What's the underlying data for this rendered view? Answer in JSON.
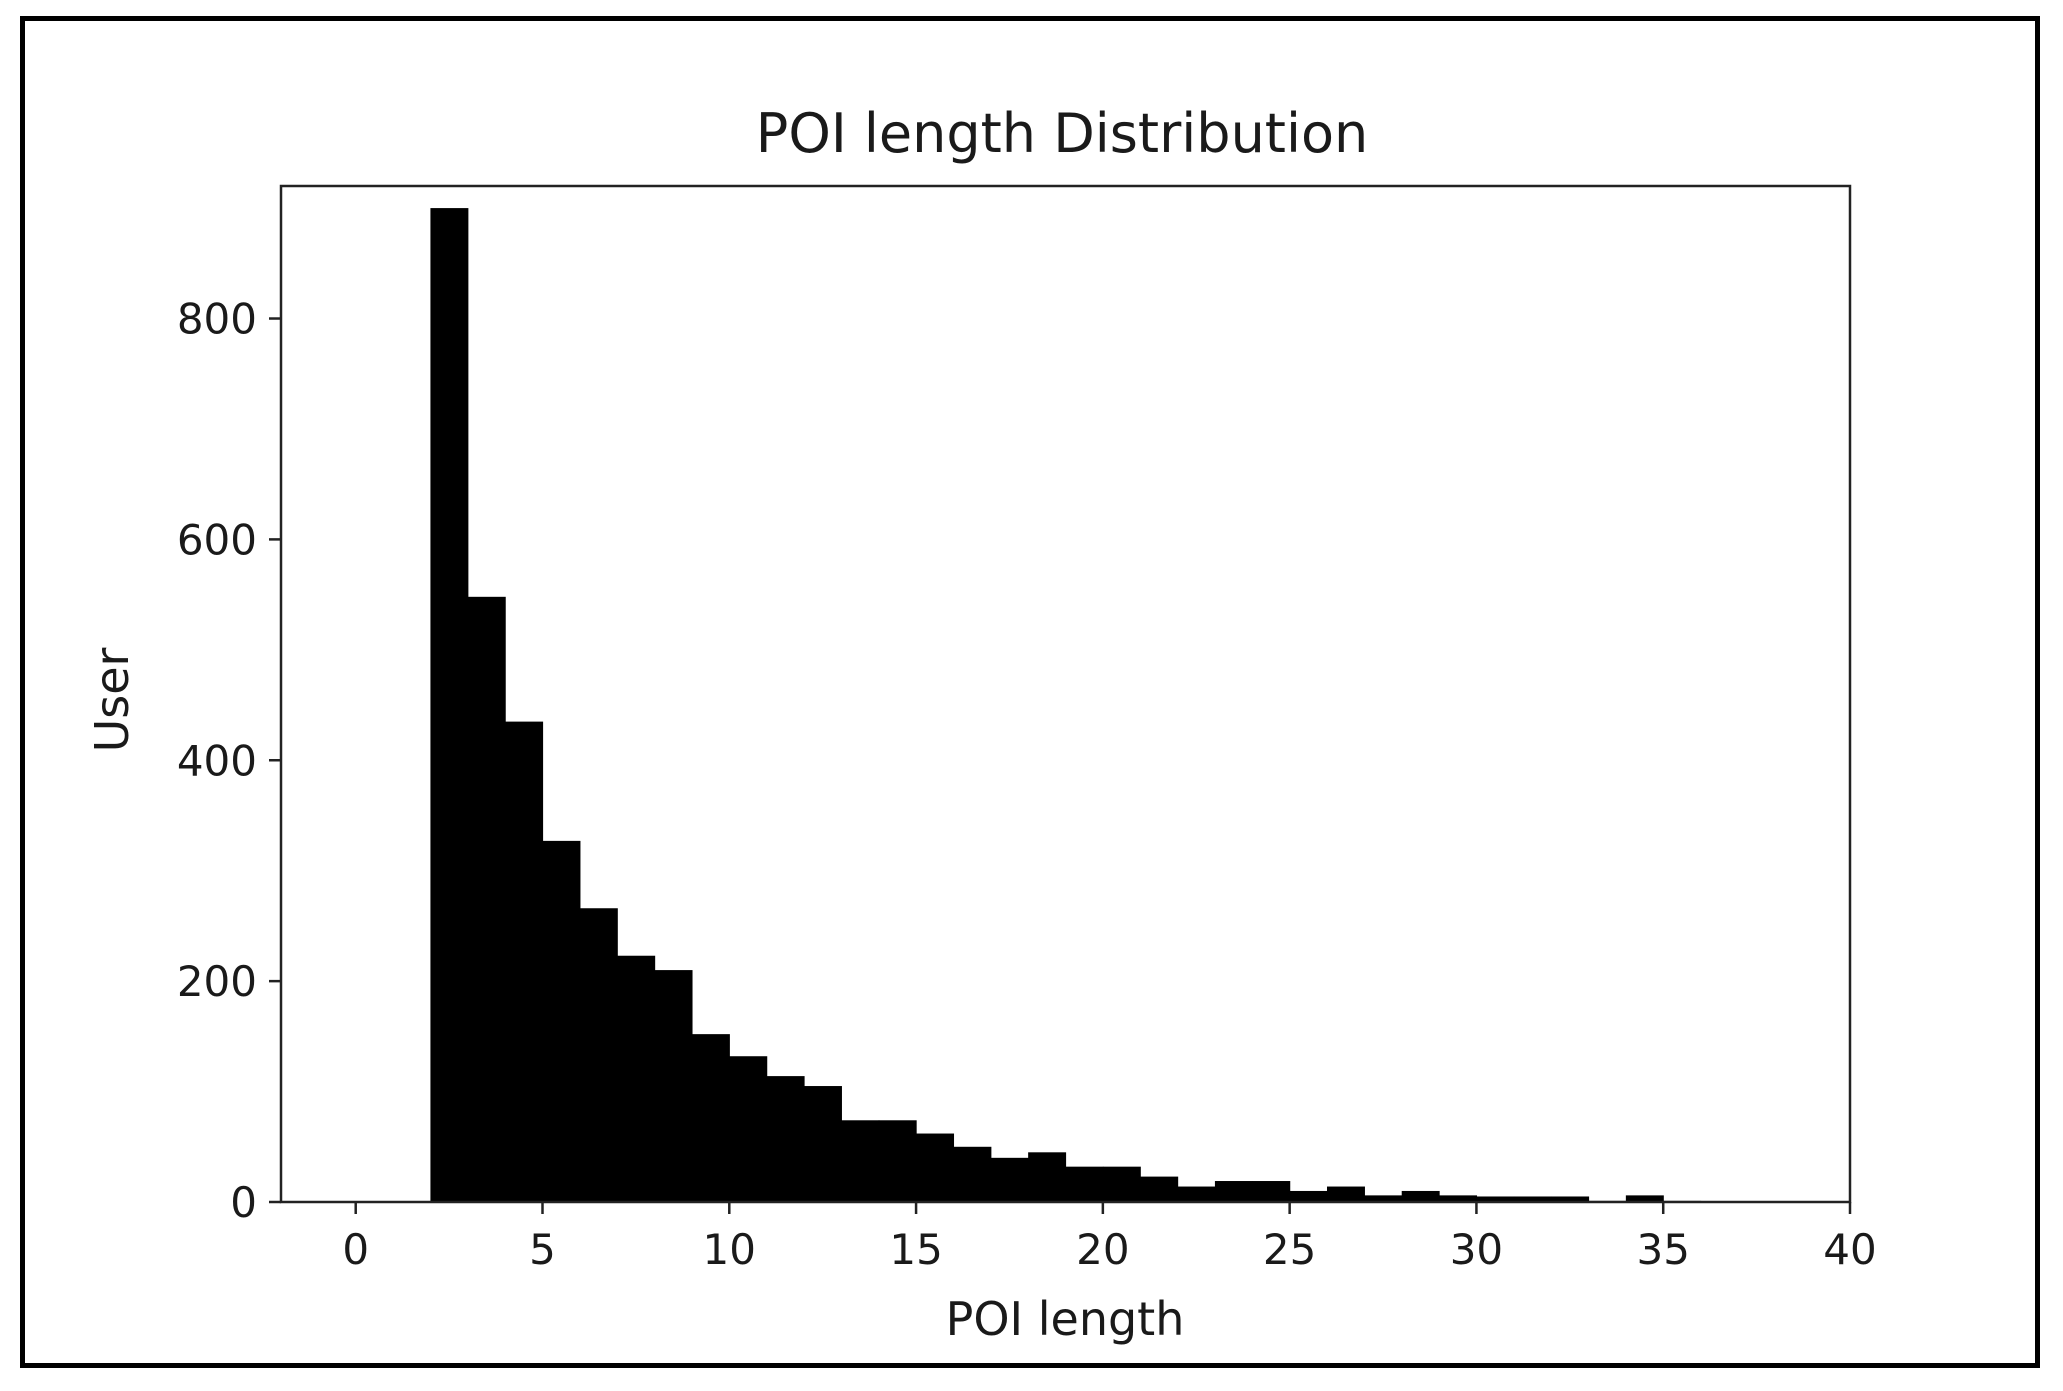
{
  "chart_data": {
    "type": "bar",
    "title": "POI length Distribution",
    "xlabel": "POI length",
    "ylabel": "User",
    "xlim": [
      -2,
      40
    ],
    "ylim": [
      0,
      920
    ],
    "xticks": [
      0,
      5,
      10,
      15,
      20,
      25,
      30,
      35,
      40
    ],
    "yticks": [
      0,
      200,
      400,
      600,
      800
    ],
    "bar_color": "#000000",
    "grid": false,
    "legend": "none",
    "bins": [
      {
        "x0": 2,
        "x1": 3,
        "value": 900
      },
      {
        "x0": 3,
        "x1": 4,
        "value": 548
      },
      {
        "x0": 4,
        "x1": 5,
        "value": 435
      },
      {
        "x0": 5,
        "x1": 6,
        "value": 327
      },
      {
        "x0": 6,
        "x1": 7,
        "value": 266
      },
      {
        "x0": 7,
        "x1": 8,
        "value": 223
      },
      {
        "x0": 8,
        "x1": 9,
        "value": 210
      },
      {
        "x0": 9,
        "x1": 10,
        "value": 152
      },
      {
        "x0": 10,
        "x1": 11,
        "value": 132
      },
      {
        "x0": 11,
        "x1": 12,
        "value": 114
      },
      {
        "x0": 12,
        "x1": 13,
        "value": 105
      },
      {
        "x0": 13,
        "x1": 14,
        "value": 74
      },
      {
        "x0": 14,
        "x1": 15,
        "value": 74
      },
      {
        "x0": 15,
        "x1": 16,
        "value": 62
      },
      {
        "x0": 16,
        "x1": 17,
        "value": 50
      },
      {
        "x0": 17,
        "x1": 18,
        "value": 40
      },
      {
        "x0": 18,
        "x1": 19,
        "value": 45
      },
      {
        "x0": 19,
        "x1": 20,
        "value": 32
      },
      {
        "x0": 20,
        "x1": 21,
        "value": 32
      },
      {
        "x0": 21,
        "x1": 22,
        "value": 23
      },
      {
        "x0": 22,
        "x1": 23,
        "value": 14
      },
      {
        "x0": 23,
        "x1": 24,
        "value": 19
      },
      {
        "x0": 24,
        "x1": 25,
        "value": 19
      },
      {
        "x0": 25,
        "x1": 26,
        "value": 10
      },
      {
        "x0": 26,
        "x1": 27,
        "value": 14
      },
      {
        "x0": 27,
        "x1": 28,
        "value": 6
      },
      {
        "x0": 28,
        "x1": 29,
        "value": 10
      },
      {
        "x0": 29,
        "x1": 30,
        "value": 6
      },
      {
        "x0": 30,
        "x1": 31,
        "value": 5
      },
      {
        "x0": 31,
        "x1": 32,
        "value": 5
      },
      {
        "x0": 32,
        "x1": 33,
        "value": 5
      },
      {
        "x0": 33,
        "x1": 34,
        "value": 1
      },
      {
        "x0": 34,
        "x1": 35,
        "value": 6
      },
      {
        "x0": 35,
        "x1": 36,
        "value": 1
      }
    ]
  }
}
